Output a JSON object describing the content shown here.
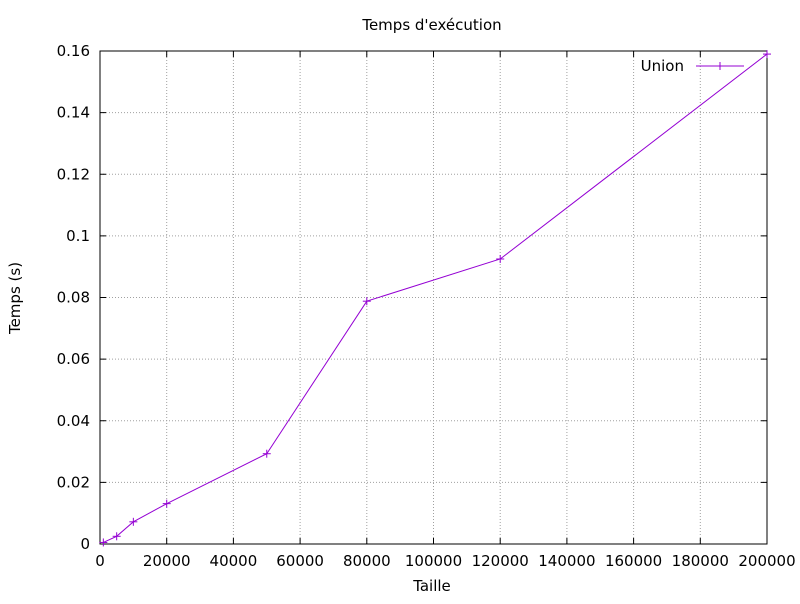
{
  "chart_data": {
    "type": "line",
    "title": "Temps d'exécution",
    "xlabel": "Taille",
    "ylabel": "Temps (s)",
    "xlim": [
      0,
      200000
    ],
    "ylim": [
      0,
      0.16
    ],
    "x_ticks": [
      0,
      20000,
      40000,
      60000,
      80000,
      100000,
      120000,
      140000,
      160000,
      180000,
      200000
    ],
    "x_tick_labels": [
      "0",
      "20000",
      "40000",
      "60000",
      "80000",
      "100000",
      "120000",
      "140000",
      "160000",
      "180000",
      "200000"
    ],
    "y_ticks": [
      0,
      0.02,
      0.04,
      0.06,
      0.08,
      0.1,
      0.12,
      0.14,
      0.16
    ],
    "y_tick_labels": [
      "0",
      "0.02",
      "0.04",
      "0.06",
      "0.08",
      "0.1",
      "0.12",
      "0.14",
      "0.16"
    ],
    "grid": true,
    "legend_position": "top-right",
    "series": [
      {
        "name": "Union",
        "color": "#9400d3",
        "marker": "plus",
        "x": [
          1000,
          5000,
          10000,
          20000,
          50000,
          80000,
          120000,
          200000
        ],
        "y": [
          0.0005,
          0.0025,
          0.0072,
          0.0131,
          0.0293,
          0.0788,
          0.0925,
          0.159
        ]
      }
    ]
  }
}
